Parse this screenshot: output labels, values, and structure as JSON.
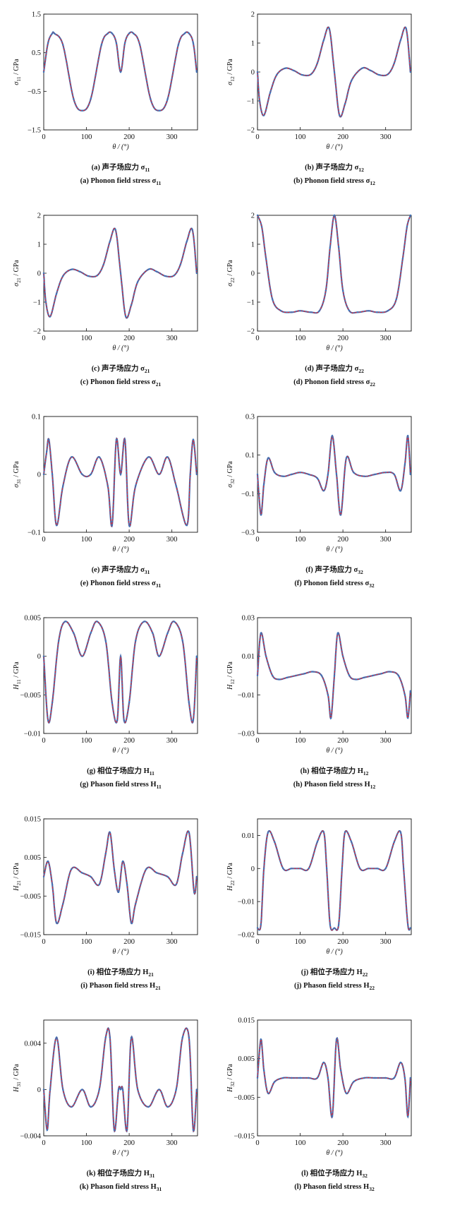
{
  "chart_data": [
    {
      "id": "a",
      "type": "line",
      "ylabel": "σ11 / GPa",
      "xlabel": "θ / (°)",
      "xlim": [
        0,
        360
      ],
      "ylim": [
        -1.5,
        1.5
      ],
      "xticks": [
        0,
        100,
        200,
        300
      ],
      "yticks": [
        -1.5,
        -0.5,
        0.5,
        1.5
      ],
      "caption_cn": "(a) 声子场应力 σ11",
      "caption_en": "(a) Phonon field stress σ11",
      "x": [
        0,
        10,
        20,
        25,
        45,
        70,
        90,
        110,
        135,
        150,
        160,
        170,
        180,
        190,
        200,
        210,
        225,
        250,
        270,
        290,
        315,
        330,
        340,
        350,
        358
      ],
      "values": [
        0,
        0.75,
        1.0,
        1.0,
        0.7,
        -0.7,
        -1.0,
        -0.7,
        0.7,
        1.0,
        1.0,
        0.75,
        0,
        0.75,
        1.0,
        1.0,
        0.7,
        -0.7,
        -1.0,
        -0.7,
        0.7,
        1.0,
        1.0,
        0.75,
        0
      ]
    },
    {
      "id": "b",
      "type": "line",
      "ylabel": "σ12 / GPa",
      "xlabel": "θ / (°)",
      "xlim": [
        0,
        360
      ],
      "ylim": [
        -2,
        2
      ],
      "xticks": [
        0,
        100,
        200,
        300
      ],
      "yticks": [
        -2,
        -1,
        0,
        1,
        2
      ],
      "caption_cn": "(b) 声子场应力 σ12",
      "caption_en": "(b) Phonon field stress σ12",
      "x": [
        0,
        5,
        15,
        30,
        45,
        65,
        85,
        105,
        125,
        140,
        155,
        168,
        180,
        192,
        205,
        220,
        245,
        265,
        285,
        305,
        320,
        335,
        348,
        358
      ],
      "values": [
        0,
        -1.0,
        -1.5,
        -0.7,
        -0.1,
        0.13,
        0.05,
        -0.1,
        -0.08,
        0.3,
        1.1,
        1.5,
        0,
        -1.5,
        -1.1,
        -0.3,
        0.13,
        0.05,
        -0.1,
        -0.08,
        0.3,
        1.1,
        1.5,
        0
      ]
    },
    {
      "id": "c",
      "type": "line",
      "ylabel": "σ21 / GPa",
      "xlabel": "θ / (°)",
      "xlim": [
        0,
        360
      ],
      "ylim": [
        -2,
        2
      ],
      "xticks": [
        0,
        100,
        200,
        300
      ],
      "yticks": [
        -2,
        -1,
        0,
        1,
        2
      ],
      "caption_cn": "(c) 声子场应力 σ21",
      "caption_en": "(c) Phonon field stress σ21",
      "x": [
        0,
        5,
        15,
        30,
        45,
        65,
        85,
        105,
        125,
        140,
        155,
        168,
        180,
        192,
        205,
        220,
        245,
        265,
        285,
        305,
        320,
        335,
        348,
        358
      ],
      "values": [
        0,
        -1.0,
        -1.5,
        -0.7,
        -0.1,
        0.13,
        0.05,
        -0.1,
        -0.08,
        0.3,
        1.1,
        1.5,
        0,
        -1.5,
        -1.1,
        -0.3,
        0.13,
        0.05,
        -0.1,
        -0.08,
        0.3,
        1.1,
        1.5,
        0
      ]
    },
    {
      "id": "d",
      "type": "line",
      "ylabel": "σ22 / GPa",
      "xlabel": "θ / (°)",
      "xlim": [
        0,
        360
      ],
      "ylim": [
        -2,
        2
      ],
      "xticks": [
        0,
        100,
        200,
        300
      ],
      "yticks": [
        -2,
        -1,
        0,
        1,
        2
      ],
      "caption_cn": "(d) 声子场应力 σ22",
      "caption_en": "(d) Phonon field stress σ22",
      "x": [
        0,
        10,
        20,
        35,
        55,
        80,
        100,
        125,
        145,
        160,
        170,
        180,
        190,
        200,
        215,
        235,
        260,
        280,
        305,
        325,
        340,
        350,
        358
      ],
      "values": [
        2.0,
        1.6,
        0.5,
        -0.9,
        -1.3,
        -1.35,
        -1.3,
        -1.35,
        -1.3,
        -0.6,
        0.9,
        2.0,
        0.9,
        -0.6,
        -1.3,
        -1.35,
        -1.3,
        -1.35,
        -1.3,
        -0.9,
        0.5,
        1.6,
        2.0
      ]
    },
    {
      "id": "e",
      "type": "line",
      "ylabel": "σ31 / GPa",
      "xlabel": "θ / (°)",
      "xlim": [
        0,
        360
      ],
      "ylim": [
        -0.1,
        0.1
      ],
      "xticks": [
        0,
        100,
        200,
        300
      ],
      "yticks": [
        -0.1,
        0,
        0.1
      ],
      "caption_cn": "(e) 声子场应力 σ31",
      "caption_en": "(e) Phonon field stress σ31",
      "x": [
        0,
        7,
        12,
        20,
        30,
        45,
        65,
        90,
        110,
        130,
        150,
        160,
        170,
        180,
        190,
        200,
        215,
        245,
        270,
        290,
        310,
        335,
        343,
        350,
        358
      ],
      "values": [
        0,
        0.04,
        0.06,
        0.0,
        -0.088,
        -0.02,
        0.03,
        0.0,
        0.0,
        0.03,
        -0.02,
        -0.088,
        0.06,
        0.0,
        0.06,
        -0.088,
        -0.02,
        0.03,
        0.0,
        0.03,
        -0.02,
        -0.088,
        0.0,
        0.06,
        0.0
      ]
    },
    {
      "id": "f",
      "type": "line",
      "ylabel": "σ32 / GPa",
      "xlabel": "θ / (°)",
      "xlim": [
        0,
        360
      ],
      "ylim": [
        -0.3,
        0.3
      ],
      "xticks": [
        0,
        100,
        200,
        300
      ],
      "yticks": [
        -0.3,
        -0.1,
        0.1,
        0.3
      ],
      "caption_cn": "(f) 声子场应力 σ32",
      "caption_en": "(f) Phonon field stress σ32",
      "x": [
        0,
        8,
        15,
        25,
        40,
        60,
        80,
        100,
        120,
        140,
        155,
        165,
        175,
        185,
        195,
        208,
        225,
        250,
        275,
        300,
        320,
        335,
        345,
        352,
        358
      ],
      "values": [
        0,
        -0.21,
        -0.05,
        0.085,
        0.01,
        -0.01,
        0.0,
        0.01,
        0.0,
        -0.02,
        -0.085,
        0.0,
        0.2,
        0.0,
        -0.21,
        0.085,
        0.01,
        -0.01,
        0.0,
        0.01,
        0.0,
        -0.085,
        0.05,
        0.2,
        0.0
      ]
    },
    {
      "id": "g",
      "type": "line",
      "ylabel": "H11 / GPa",
      "xlabel": "θ / (°)",
      "xlim": [
        0,
        360
      ],
      "ylim": [
        -0.01,
        0.005
      ],
      "xticks": [
        0,
        100,
        200,
        300
      ],
      "yticks": [
        -0.01,
        -0.005,
        0,
        0.005
      ],
      "caption_cn": "(g) 相位子场应力 H11",
      "caption_en": "(g) Phason field stress H11",
      "x": [
        0,
        10,
        20,
        35,
        50,
        70,
        90,
        110,
        125,
        145,
        160,
        172,
        180,
        188,
        200,
        215,
        235,
        255,
        270,
        290,
        305,
        325,
        340,
        350,
        358
      ],
      "values": [
        0,
        -0.0083,
        -0.006,
        0.002,
        0.0045,
        0.003,
        0.0,
        0.003,
        0.0045,
        0.002,
        -0.006,
        -0.0083,
        0.0,
        -0.0083,
        -0.006,
        0.002,
        0.0045,
        0.003,
        0.0,
        0.003,
        0.0045,
        0.002,
        -0.006,
        -0.0083,
        0.0
      ]
    },
    {
      "id": "h",
      "type": "line",
      "ylabel": "H12 / GPa",
      "xlabel": "θ / (°)",
      "xlim": [
        0,
        360
      ],
      "ylim": [
        -0.03,
        0.03
      ],
      "xticks": [
        0,
        100,
        200,
        300
      ],
      "yticks": [
        -0.03,
        -0.01,
        0.01,
        0.03
      ],
      "caption_cn": "(h) 相位子场应力 H12",
      "caption_en": "(h) Phason field stress H12",
      "x": [
        0,
        8,
        20,
        35,
        50,
        70,
        90,
        110,
        130,
        150,
        165,
        172,
        180,
        188,
        200,
        215,
        230,
        250,
        270,
        290,
        310,
        330,
        345,
        352,
        358
      ],
      "values": [
        0,
        0.022,
        0.01,
        0.0,
        -0.002,
        -0.001,
        0.0,
        0.001,
        0.002,
        0.0,
        -0.01,
        -0.022,
        0.0,
        0.022,
        0.01,
        0.0,
        -0.002,
        -0.001,
        0.0,
        0.001,
        0.002,
        0.0,
        -0.01,
        -0.022,
        -0.008
      ]
    },
    {
      "id": "i",
      "type": "line",
      "ylabel": "H21 / GPa",
      "xlabel": "θ / (°)",
      "xlim": [
        0,
        360
      ],
      "ylim": [
        -0.015,
        0.015
      ],
      "xticks": [
        0,
        100,
        200,
        300
      ],
      "yticks": [
        -0.015,
        -0.005,
        0.005,
        0.015
      ],
      "caption_cn": "(i) 相位子场应力 H21",
      "caption_en": "(i) Phason field stress H21",
      "x": [
        0,
        10,
        20,
        30,
        45,
        65,
        90,
        110,
        130,
        145,
        155,
        165,
        175,
        185,
        195,
        205,
        215,
        240,
        265,
        290,
        310,
        325,
        340,
        352,
        358
      ],
      "values": [
        0,
        0.004,
        -0.002,
        -0.012,
        -0.007,
        0.002,
        0.001,
        0.0,
        -0.002,
        0.006,
        0.0115,
        0.002,
        -0.004,
        0.004,
        -0.002,
        -0.012,
        -0.007,
        0.002,
        0.001,
        0.0,
        -0.002,
        0.006,
        0.0115,
        -0.004,
        0.0
      ]
    },
    {
      "id": "j",
      "type": "line",
      "ylabel": "H22 / GPa",
      "xlabel": "θ / (°)",
      "xlim": [
        0,
        360
      ],
      "ylim": [
        -0.02,
        0.015
      ],
      "xticks": [
        0,
        100,
        200,
        300
      ],
      "yticks": [
        -0.02,
        -0.01,
        0,
        0.01
      ],
      "caption_cn": "(j) 相位子场应力 H22",
      "caption_en": "(j) Phason field stress H22",
      "x": [
        0,
        8,
        15,
        25,
        40,
        60,
        80,
        100,
        120,
        140,
        155,
        162,
        170,
        180,
        190,
        198,
        205,
        220,
        240,
        260,
        280,
        300,
        320,
        335,
        342,
        352,
        358
      ],
      "values": [
        -0.018,
        -0.017,
        0.0,
        0.011,
        0.008,
        0.0,
        0.0,
        0.0,
        0.0,
        0.008,
        0.011,
        0.0,
        -0.017,
        -0.018,
        -0.017,
        0.0,
        0.011,
        0.008,
        0.0,
        0.0,
        0.0,
        0.0,
        0.008,
        0.011,
        0.0,
        -0.017,
        -0.018
      ]
    },
    {
      "id": "k",
      "type": "line",
      "ylabel": "H31 / GPa",
      "xlabel": "θ / (°)",
      "xlim": [
        0,
        360
      ],
      "ylim": [
        -0.004,
        0.006
      ],
      "xticks": [
        0,
        100,
        200,
        300
      ],
      "yticks": [
        -0.004,
        0,
        0.004
      ],
      "caption_cn": "(k) 相位子场应力 H31",
      "caption_en": "(k) Phason field stress H31",
      "x": [
        0,
        8,
        15,
        30,
        45,
        65,
        90,
        110,
        130,
        145,
        155,
        165,
        175,
        180,
        185,
        195,
        205,
        220,
        245,
        270,
        290,
        310,
        325,
        340,
        350,
        358
      ],
      "values": [
        0,
        -0.0035,
        0.0,
        0.0045,
        0.0,
        -0.0015,
        0.0,
        -0.0015,
        0.0,
        0.0045,
        0.0045,
        -0.0035,
        0.0,
        0.0,
        0.0,
        -0.0035,
        0.0045,
        0.0,
        -0.0015,
        0.0,
        -0.0015,
        0.0,
        0.0045,
        0.0045,
        -0.0035,
        0.0
      ]
    },
    {
      "id": "l",
      "type": "line",
      "ylabel": "H32 / GPa",
      "xlabel": "θ / (°)",
      "xlim": [
        0,
        360
      ],
      "ylim": [
        -0.015,
        0.015
      ],
      "xticks": [
        0,
        100,
        200,
        300
      ],
      "yticks": [
        -0.015,
        -0.005,
        0.005,
        0.015
      ],
      "caption_cn": "(l) 相位子场应力 H32",
      "caption_en": "(l) Phason field stress H32",
      "x": [
        0,
        8,
        15,
        25,
        40,
        60,
        80,
        100,
        120,
        140,
        155,
        165,
        175,
        185,
        195,
        208,
        225,
        250,
        275,
        300,
        320,
        335,
        345,
        352,
        358
      ],
      "values": [
        0,
        0.01,
        0.002,
        -0.004,
        -0.001,
        0.0,
        0.0,
        0.0,
        0.0,
        0.0,
        0.004,
        0.0,
        -0.01,
        0.01,
        0.002,
        -0.004,
        -0.001,
        0.0,
        0.0,
        0.0,
        0.0,
        0.004,
        0.0,
        -0.01,
        0.0
      ]
    }
  ],
  "colors": {
    "curve_blue": "#3f73b8",
    "curve_red": "#e8232a",
    "axis": "#111111"
  }
}
